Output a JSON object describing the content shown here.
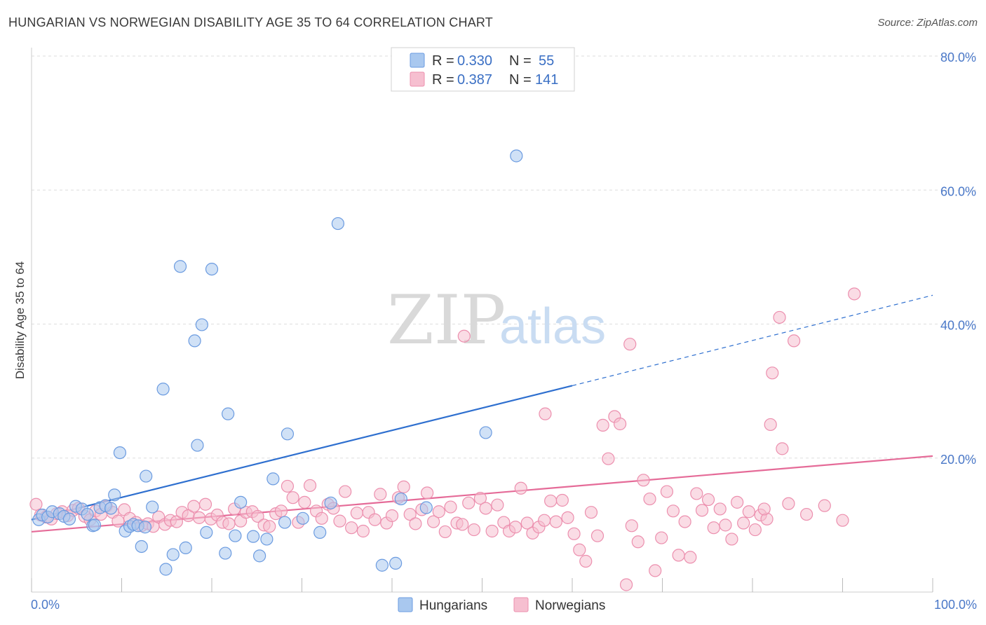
{
  "title": "HUNGARIAN VS NORWEGIAN DISABILITY AGE 35 TO 64 CORRELATION CHART",
  "source": "Source: ZipAtlas.com",
  "watermark": {
    "zip": "ZIP",
    "atlas": "atlas"
  },
  "colors": {
    "hungarian_fill": "#a9c8ef",
    "hungarian_stroke": "#6b9be0",
    "hungarian_line": "#2e6fcf",
    "norwegian_fill": "#f6bfd0",
    "norwegian_stroke": "#ec8fae",
    "norwegian_line": "#e56b98",
    "grid": "#dddddd",
    "tick_text": "#4a78c8"
  },
  "legend": {
    "rows": [
      {
        "r_label": "R =",
        "r_value": "0.330",
        "n_label": "N =",
        "n_value": "55"
      },
      {
        "r_label": "R =",
        "r_value": "0.387",
        "n_label": "N =",
        "n_value": "141"
      }
    ]
  },
  "bottom_legend": [
    "Hungarians",
    "Norwegians"
  ],
  "chart_data": {
    "type": "scatter",
    "xlabel": "",
    "ylabel": "Disability Age 35 to 64",
    "xlim": [
      0,
      100
    ],
    "ylim": [
      0,
      80
    ],
    "x_tick_labels": [
      "0.0%",
      "100.0%"
    ],
    "y_ticks": [
      20,
      40,
      60,
      80
    ],
    "y_tick_labels": [
      "20.0%",
      "40.0%",
      "60.0%",
      "80.0%"
    ],
    "grid": true,
    "legend_position": "top-center",
    "series": [
      {
        "name": "Hungarians",
        "r": 0.33,
        "n": 55,
        "trend": {
          "x0": 0,
          "y0": 10.8,
          "x1": 60,
          "y1": 30.8,
          "dashed_to_x": 100,
          "dashed_to_y": 44.3
        },
        "points": [
          [
            0.8,
            10.8
          ],
          [
            1.2,
            11.5
          ],
          [
            1.8,
            11.2
          ],
          [
            2.3,
            12.0
          ],
          [
            3.1,
            11.7
          ],
          [
            3.6,
            11.3
          ],
          [
            4.2,
            10.9
          ],
          [
            4.9,
            12.8
          ],
          [
            5.6,
            12.4
          ],
          [
            6.2,
            11.6
          ],
          [
            6.8,
            9.9
          ],
          [
            7.0,
            10.0
          ],
          [
            7.6,
            12.6
          ],
          [
            8.2,
            12.9
          ],
          [
            8.8,
            12.5
          ],
          [
            9.2,
            14.5
          ],
          [
            9.8,
            20.8
          ],
          [
            10.4,
            9.1
          ],
          [
            10.9,
            9.8
          ],
          [
            11.3,
            10.1
          ],
          [
            11.8,
            9.9
          ],
          [
            12.2,
            6.8
          ],
          [
            12.6,
            9.7
          ],
          [
            12.7,
            17.3
          ],
          [
            13.4,
            12.7
          ],
          [
            14.6,
            30.3
          ],
          [
            14.9,
            3.4
          ],
          [
            15.7,
            5.6
          ],
          [
            16.5,
            48.6
          ],
          [
            17.1,
            6.6
          ],
          [
            18.1,
            37.5
          ],
          [
            18.4,
            21.9
          ],
          [
            18.9,
            39.9
          ],
          [
            19.4,
            8.9
          ],
          [
            20.0,
            48.2
          ],
          [
            21.5,
            5.8
          ],
          [
            21.8,
            26.6
          ],
          [
            22.6,
            8.4
          ],
          [
            23.2,
            13.4
          ],
          [
            24.6,
            8.3
          ],
          [
            25.3,
            5.4
          ],
          [
            26.1,
            7.9
          ],
          [
            26.8,
            16.9
          ],
          [
            28.1,
            10.4
          ],
          [
            28.4,
            23.6
          ],
          [
            30.1,
            11.0
          ],
          [
            32.0,
            8.9
          ],
          [
            33.2,
            13.3
          ],
          [
            34.0,
            55.0
          ],
          [
            38.9,
            4.0
          ],
          [
            40.4,
            4.3
          ],
          [
            41.0,
            13.9
          ],
          [
            50.4,
            23.8
          ],
          [
            53.8,
            65.1
          ],
          [
            43.8,
            12.6
          ]
        ]
      },
      {
        "name": "Norwegians",
        "r": 0.387,
        "n": 141,
        "trend": {
          "x0": 0,
          "y0": 9.0,
          "x1": 100,
          "y1": 20.3
        },
        "points": [
          [
            0.5,
            13.1
          ],
          [
            1.0,
            11.5
          ],
          [
            1.6,
            11.2
          ],
          [
            2.2,
            10.9
          ],
          [
            2.8,
            11.7
          ],
          [
            3.4,
            12.0
          ],
          [
            4.0,
            11.4
          ],
          [
            4.6,
            12.2
          ],
          [
            5.2,
            12.5
          ],
          [
            5.9,
            11.3
          ],
          [
            6.5,
            10.8
          ],
          [
            7.1,
            12.1
          ],
          [
            7.7,
            11.6
          ],
          [
            8.3,
            12.8
          ],
          [
            9.0,
            11.9
          ],
          [
            9.6,
            10.6
          ],
          [
            10.3,
            12.3
          ],
          [
            10.9,
            11.0
          ],
          [
            11.6,
            10.4
          ],
          [
            12.2,
            9.9
          ],
          [
            12.9,
            10.2
          ],
          [
            13.5,
            9.8
          ],
          [
            14.1,
            11.2
          ],
          [
            14.8,
            10.1
          ],
          [
            15.4,
            10.7
          ],
          [
            16.1,
            10.5
          ],
          [
            16.7,
            11.9
          ],
          [
            17.4,
            11.4
          ],
          [
            18.0,
            12.8
          ],
          [
            18.6,
            11.1
          ],
          [
            19.3,
            13.1
          ],
          [
            19.9,
            10.9
          ],
          [
            20.6,
            11.5
          ],
          [
            21.2,
            10.4
          ],
          [
            21.9,
            10.2
          ],
          [
            22.5,
            12.4
          ],
          [
            23.2,
            10.6
          ],
          [
            23.8,
            11.9
          ],
          [
            24.5,
            12.0
          ],
          [
            25.1,
            11.3
          ],
          [
            25.8,
            10.0
          ],
          [
            26.4,
            9.8
          ],
          [
            27.1,
            11.7
          ],
          [
            27.7,
            12.1
          ],
          [
            28.4,
            15.8
          ],
          [
            29.0,
            14.1
          ],
          [
            29.6,
            10.4
          ],
          [
            30.3,
            13.4
          ],
          [
            30.9,
            15.9
          ],
          [
            31.6,
            12.1
          ],
          [
            32.2,
            11.0
          ],
          [
            32.9,
            13.1
          ],
          [
            33.5,
            12.5
          ],
          [
            34.2,
            10.6
          ],
          [
            34.8,
            15.0
          ],
          [
            35.5,
            9.6
          ],
          [
            36.1,
            11.8
          ],
          [
            36.8,
            9.1
          ],
          [
            37.4,
            11.9
          ],
          [
            38.1,
            10.8
          ],
          [
            38.7,
            14.6
          ],
          [
            39.4,
            10.3
          ],
          [
            40.0,
            11.4
          ],
          [
            40.7,
            14.1
          ],
          [
            41.3,
            15.7
          ],
          [
            42.0,
            11.6
          ],
          [
            42.6,
            10.2
          ],
          [
            43.3,
            12.3
          ],
          [
            43.9,
            14.8
          ],
          [
            44.6,
            10.5
          ],
          [
            45.2,
            12.0
          ],
          [
            45.9,
            9.0
          ],
          [
            46.5,
            12.7
          ],
          [
            47.2,
            10.3
          ],
          [
            47.8,
            10.1
          ],
          [
            48.5,
            13.3
          ],
          [
            49.1,
            9.3
          ],
          [
            49.8,
            14.0
          ],
          [
            50.4,
            12.5
          ],
          [
            51.1,
            9.1
          ],
          [
            51.7,
            13.0
          ],
          [
            52.4,
            10.4
          ],
          [
            53.0,
            9.1
          ],
          [
            53.7,
            9.7
          ],
          [
            54.3,
            15.5
          ],
          [
            55.0,
            10.3
          ],
          [
            55.6,
            8.8
          ],
          [
            56.3,
            9.7
          ],
          [
            56.9,
            10.7
          ],
          [
            57.6,
            13.6
          ],
          [
            58.2,
            10.5
          ],
          [
            58.9,
            13.7
          ],
          [
            59.5,
            11.1
          ],
          [
            60.2,
            8.7
          ],
          [
            60.8,
            6.3
          ],
          [
            61.5,
            4.6
          ],
          [
            62.1,
            11.9
          ],
          [
            62.8,
            8.4
          ],
          [
            63.4,
            24.9
          ],
          [
            64.0,
            19.9
          ],
          [
            64.7,
            26.2
          ],
          [
            65.3,
            25.1
          ],
          [
            66.0,
            1.1
          ],
          [
            66.6,
            9.9
          ],
          [
            67.3,
            7.5
          ],
          [
            67.9,
            16.7
          ],
          [
            68.6,
            13.9
          ],
          [
            69.2,
            3.2
          ],
          [
            69.9,
            8.1
          ],
          [
            70.5,
            15.0
          ],
          [
            71.2,
            12.1
          ],
          [
            71.8,
            5.5
          ],
          [
            72.5,
            10.5
          ],
          [
            73.1,
            5.2
          ],
          [
            73.8,
            14.7
          ],
          [
            74.4,
            12.2
          ],
          [
            75.1,
            13.8
          ],
          [
            48.0,
            38.2
          ],
          [
            57.0,
            26.6
          ],
          [
            66.4,
            37.0
          ],
          [
            75.7,
            9.6
          ],
          [
            76.4,
            12.4
          ],
          [
            77.0,
            10.0
          ],
          [
            77.7,
            7.9
          ],
          [
            78.3,
            13.4
          ],
          [
            79.0,
            10.3
          ],
          [
            79.6,
            12.0
          ],
          [
            80.3,
            9.3
          ],
          [
            80.9,
            11.5
          ],
          [
            81.6,
            10.9
          ],
          [
            82.0,
            25.0
          ],
          [
            82.2,
            32.7
          ],
          [
            83.0,
            41.0
          ],
          [
            83.3,
            21.4
          ],
          [
            84.6,
            37.5
          ],
          [
            91.3,
            44.5
          ],
          [
            81.3,
            12.4
          ],
          [
            84.0,
            13.2
          ],
          [
            86.0,
            11.6
          ],
          [
            88.0,
            12.9
          ],
          [
            90.0,
            10.7
          ]
        ]
      }
    ]
  }
}
